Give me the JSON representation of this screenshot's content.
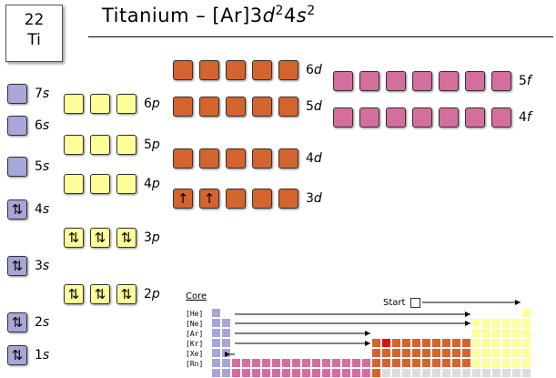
{
  "element": {
    "number": "22",
    "symbol": "Ti"
  },
  "title": {
    "prefix": "Titanium – [Ar]3",
    "orb1": "d",
    "sup1": "2",
    "mid": "4",
    "orb2": "s",
    "sup2": "2"
  },
  "colors": {
    "s": "#a6a6d8",
    "p": "#ffff99",
    "d": "#d4632e",
    "f": "#d46e9d",
    "unfilled_table": "#dcdcdc",
    "current": "#e01010"
  },
  "orbitals": [
    {
      "n": "1",
      "l": "s",
      "type": "s",
      "boxes": [
        "⇅"
      ]
    },
    {
      "n": "2",
      "l": "s",
      "type": "s",
      "boxes": [
        "⇅"
      ]
    },
    {
      "n": "3",
      "l": "s",
      "type": "s",
      "boxes": [
        "⇅"
      ]
    },
    {
      "n": "4",
      "l": "s",
      "type": "s",
      "boxes": [
        "⇅"
      ]
    },
    {
      "n": "5",
      "l": "s",
      "type": "s",
      "boxes": [
        ""
      ]
    },
    {
      "n": "6",
      "l": "s",
      "type": "s",
      "boxes": [
        ""
      ]
    },
    {
      "n": "7",
      "l": "s",
      "type": "s",
      "boxes": [
        ""
      ]
    },
    {
      "n": "2",
      "l": "p",
      "type": "p",
      "boxes": [
        "⇅",
        "⇅",
        "⇅"
      ]
    },
    {
      "n": "3",
      "l": "p",
      "type": "p",
      "boxes": [
        "⇅",
        "⇅",
        "⇅"
      ]
    },
    {
      "n": "4",
      "l": "p",
      "type": "p",
      "boxes": [
        "",
        "",
        ""
      ]
    },
    {
      "n": "5",
      "l": "p",
      "type": "p",
      "boxes": [
        "",
        "",
        ""
      ]
    },
    {
      "n": "6",
      "l": "p",
      "type": "p",
      "boxes": [
        "",
        "",
        ""
      ]
    },
    {
      "n": "3",
      "l": "d",
      "type": "d",
      "boxes": [
        "↑",
        "↑",
        "",
        "",
        ""
      ]
    },
    {
      "n": "4",
      "l": "d",
      "type": "d",
      "boxes": [
        "",
        "",
        "",
        "",
        ""
      ]
    },
    {
      "n": "5",
      "l": "d",
      "type": "d",
      "boxes": [
        "",
        "",
        "",
        "",
        ""
      ]
    },
    {
      "n": "6",
      "l": "d",
      "type": "d",
      "boxes": [
        "",
        "",
        "",
        "",
        ""
      ]
    },
    {
      "n": "4",
      "l": "f",
      "type": "f",
      "boxes": [
        "",
        "",
        "",
        "",
        "",
        "",
        ""
      ]
    },
    {
      "n": "5",
      "l": "f",
      "type": "f",
      "boxes": [
        "",
        "",
        "",
        "",
        "",
        "",
        ""
      ]
    }
  ],
  "periodic_table": {
    "core_title": "Core",
    "core_labels": [
      "[He]",
      "[Ne]",
      "[Ar]",
      "[Kr]",
      "[Xe]",
      "[Rn]"
    ],
    "start_label": "Start"
  }
}
